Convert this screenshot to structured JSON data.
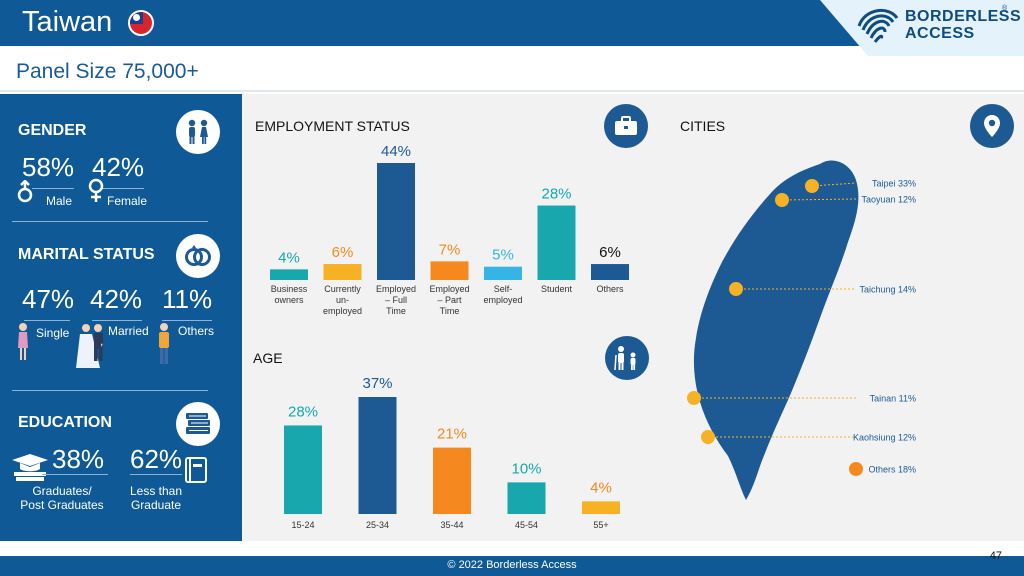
{
  "header": {
    "title": "Taiwan",
    "logo_line1": "BORDERLESS",
    "logo_line2": "ACCESS",
    "logo_reg": "®"
  },
  "panel_size": "Panel Size 75,000+",
  "gender": {
    "title": "GENDER",
    "male_pct": "58%",
    "female_pct": "42%",
    "male_label": "Male",
    "female_label": "Female"
  },
  "marital": {
    "title": "MARITAL STATUS",
    "single_pct": "47%",
    "married_pct": "42%",
    "others_pct": "11%",
    "single_label": "Single",
    "married_label": "Married",
    "married_suffix": ",",
    "others_label": "Others"
  },
  "education": {
    "title": "EDUCATION",
    "grad_pct": "38%",
    "less_pct": "62%",
    "grad_label1": "Graduates/",
    "grad_label2": "Post Graduates",
    "less_label1": "Less than",
    "less_label2": "Graduate"
  },
  "colors": {
    "navy": "#0f5a96",
    "teal": "#17a7ac",
    "orange": "#f5891f",
    "yellow": "#f6b125",
    "sky": "#35b4e6",
    "dark_navy": "#1d5a93"
  },
  "chart_data": [
    {
      "type": "bar",
      "title": "EMPLOYMENT STATUS",
      "categories": [
        [
          "Business",
          "owners"
        ],
        [
          "Currently",
          "un-",
          "employed"
        ],
        [
          "Employed",
          "– Full",
          "Time"
        ],
        [
          "Employed",
          "– Part",
          "Time"
        ],
        [
          "Self-",
          "employed"
        ],
        [
          "Student"
        ],
        [
          "Others"
        ]
      ],
      "values": [
        4,
        6,
        44,
        7,
        5,
        28,
        6
      ],
      "labels": [
        "4%",
        "6%",
        "44%",
        "7%",
        "5%",
        "28%",
        "6%"
      ],
      "colors": [
        "#17a7ac",
        "#f6b125",
        "#1d5a93",
        "#f5891f",
        "#35b4e6",
        "#17a7ac",
        "#1d5a93"
      ],
      "label_colors": [
        "#17a7ac",
        "#f5891f",
        "#1d5a93",
        "#f5891f",
        "#35b4e6",
        "#17a7ac",
        "#111111"
      ]
    },
    {
      "type": "bar",
      "title": "AGE",
      "categories": [
        "15-24",
        "25-34",
        "35-44",
        "45-54",
        "55+"
      ],
      "values": [
        28,
        37,
        21,
        10,
        4
      ],
      "labels": [
        "28%",
        "37%",
        "21%",
        "10%",
        "4%"
      ],
      "colors": [
        "#17a7ac",
        "#1d5a93",
        "#f5891f",
        "#17a7ac",
        "#f6b125"
      ],
      "label_colors": [
        "#17a7ac",
        "#1d5a93",
        "#f5891f",
        "#17a7ac",
        "#f5891f"
      ]
    },
    {
      "type": "map",
      "title": "CITIES",
      "cities": [
        {
          "name": "Taipei",
          "value": "33%"
        },
        {
          "name": "Taoyuan",
          "value": "12%"
        },
        {
          "name": "Taichung",
          "value": "14%"
        },
        {
          "name": "Tainan",
          "value": "11%"
        },
        {
          "name": "Kaohsiung",
          "value": "12%"
        }
      ],
      "others": {
        "name": "Others",
        "value": "18%"
      }
    }
  ],
  "footer": {
    "copyright": "© 2022 Borderless Access",
    "page": "47"
  }
}
